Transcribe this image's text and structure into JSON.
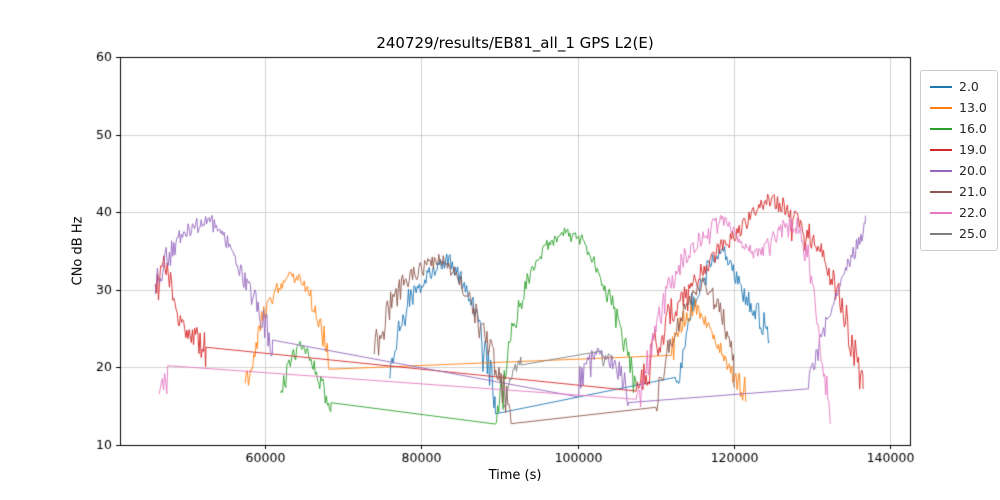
{
  "chart_data": {
    "type": "line",
    "title": "240729/results/EB81_all_1 GPS L2(E)",
    "xlabel": "Time (s)",
    "ylabel": "CNo dB Hz",
    "xlim": [
      41500,
      142500
    ],
    "ylim": [
      10,
      60
    ],
    "grid": true,
    "xtick_values": [
      60000,
      80000,
      100000,
      120000,
      140000
    ],
    "xtick_labels": [
      "60000",
      "80000",
      "100000",
      "120000",
      "140000"
    ],
    "ytick_values": [
      10,
      20,
      30,
      40,
      50,
      60
    ],
    "ytick_labels": [
      "10",
      "20",
      "30",
      "40",
      "50",
      "60"
    ],
    "legend": {
      "position": "right-outside",
      "entries": [
        {
          "label": "2.0",
          "color": "#1f77b4"
        },
        {
          "label": "13.0",
          "color": "#ff7f0e"
        },
        {
          "label": "16.0",
          "color": "#2ca02c"
        },
        {
          "label": "19.0",
          "color": "#d62728"
        },
        {
          "label": "20.0",
          "color": "#9467bd"
        },
        {
          "label": "21.0",
          "color": "#8c564b"
        },
        {
          "label": "22.0",
          "color": "#e377c2"
        },
        {
          "label": "25.0",
          "color": "#7f7f7f"
        }
      ]
    },
    "series": [
      {
        "name": "2.0",
        "color": "#1f77b4",
        "noise": 1.6,
        "segments": [
          [
            [
              76000,
              20
            ],
            [
              78500,
              29
            ],
            [
              81000,
              32
            ],
            [
              83500,
              34
            ],
            [
              86000,
              30
            ],
            [
              88000,
              23
            ],
            [
              89500,
              16
            ]
          ],
          [
            [
              112500,
              17
            ],
            [
              114500,
              28
            ],
            [
              116500,
              33
            ],
            [
              118500,
              35.5
            ],
            [
              121000,
              30
            ],
            [
              123000,
              27
            ],
            [
              124500,
              25
            ]
          ]
        ]
      },
      {
        "name": "13.0",
        "color": "#ff7f0e",
        "noise": 1.4,
        "segments": [
          [
            [
              57500,
              17
            ],
            [
              59500,
              26
            ],
            [
              61500,
              30
            ],
            [
              63500,
              32
            ],
            [
              65500,
              30
            ],
            [
              67000,
              26
            ],
            [
              68200,
              21
            ]
          ],
          [
            [
              112000,
              22
            ],
            [
              113500,
              26
            ],
            [
              115000,
              28
            ],
            [
              117000,
              25
            ],
            [
              119000,
              21
            ],
            [
              120500,
              18
            ],
            [
              121500,
              16.5
            ]
          ]
        ]
      },
      {
        "name": "16.0",
        "color": "#2ca02c",
        "noise": 1.3,
        "segments": [
          [
            [
              62000,
              17
            ],
            [
              63500,
              21
            ],
            [
              64800,
              23
            ],
            [
              66000,
              21
            ],
            [
              67200,
              18
            ],
            [
              68500,
              14.5
            ]
          ],
          [
            [
              89500,
              13.5
            ],
            [
              91500,
              24
            ],
            [
              93500,
              31
            ],
            [
              96000,
              35.5
            ],
            [
              98500,
              37.5
            ],
            [
              100500,
              36.5
            ],
            [
              102500,
              33
            ],
            [
              104500,
              28
            ],
            [
              106000,
              23
            ],
            [
              107500,
              17
            ]
          ]
        ]
      },
      {
        "name": "19.0",
        "color": "#d62728",
        "noise": 1.8,
        "segments": [
          [
            [
              46000,
              29
            ],
            [
              47000,
              33
            ],
            [
              48000,
              31
            ],
            [
              49000,
              26
            ],
            [
              50500,
              24
            ],
            [
              52500,
              22.5
            ]
          ],
          [
            [
              107500,
              15
            ],
            [
              109500,
              22
            ],
            [
              112000,
              27
            ],
            [
              115000,
              31
            ],
            [
              118000,
              35
            ],
            [
              121000,
              38
            ],
            [
              124000,
              41.5
            ],
            [
              126000,
              41
            ],
            [
              128000,
              39
            ],
            [
              130500,
              36
            ],
            [
              132500,
              32
            ],
            [
              134000,
              27
            ],
            [
              135500,
              22
            ],
            [
              136500,
              18
            ]
          ]
        ]
      },
      {
        "name": "20.0",
        "color": "#9467bd",
        "noise": 1.4,
        "segments": [
          [
            [
              46000,
              30
            ],
            [
              47500,
              34
            ],
            [
              49500,
              37
            ],
            [
              51500,
              38.5
            ],
            [
              53500,
              39
            ],
            [
              55500,
              36
            ],
            [
              57500,
              31
            ],
            [
              59500,
              27
            ],
            [
              61000,
              23
            ]
          ],
          [
            [
              100000,
              18
            ],
            [
              101500,
              21
            ],
            [
              103000,
              22
            ],
            [
              105000,
              20
            ],
            [
              106500,
              17
            ]
          ],
          [
            [
              129500,
              17
            ],
            [
              131000,
              23
            ],
            [
              132500,
              28
            ],
            [
              134000,
              32
            ],
            [
              135500,
              35.5
            ],
            [
              136800,
              38
            ]
          ]
        ]
      },
      {
        "name": "21.0",
        "color": "#8c564b",
        "noise": 1.6,
        "segments": [
          [
            [
              74000,
              22
            ],
            [
              76000,
              28
            ],
            [
              78000,
              31
            ],
            [
              80500,
              33
            ],
            [
              83000,
              34
            ],
            [
              85000,
              31
            ],
            [
              87000,
              27
            ],
            [
              89000,
              22
            ],
            [
              90500,
              17
            ],
            [
              91500,
              14.5
            ]
          ],
          [
            [
              110000,
              15
            ],
            [
              111500,
              22
            ],
            [
              113000,
              26
            ],
            [
              114500,
              29
            ],
            [
              116000,
              31
            ],
            [
              117500,
              29
            ],
            [
              119000,
              25
            ],
            [
              120000,
              22.5
            ]
          ]
        ]
      },
      {
        "name": "22.0",
        "color": "#e377c2",
        "noise": 1.5,
        "segments": [
          [
            [
              46500,
              16
            ],
            [
              47000,
              19
            ],
            [
              47600,
              18
            ]
          ],
          [
            [
              107500,
              14
            ],
            [
              109500,
              23
            ],
            [
              111500,
              30
            ],
            [
              113500,
              34
            ],
            [
              115500,
              36.5
            ],
            [
              117500,
              38.5
            ],
            [
              119000,
              39
            ],
            [
              121000,
              36
            ],
            [
              123000,
              34.5
            ],
            [
              125000,
              36.5
            ],
            [
              126500,
              38
            ],
            [
              128000,
              38
            ],
            [
              129500,
              34
            ],
            [
              130500,
              28
            ],
            [
              131500,
              20
            ],
            [
              132300,
              14
            ]
          ]
        ]
      },
      {
        "name": "25.0",
        "color": "#7f7f7f",
        "noise": 0.8,
        "segments": [
          [
            [
              90500,
              14
            ],
            [
              91200,
              18
            ],
            [
              92000,
              20
            ],
            [
              92800,
              20.5
            ]
          ],
          [
            [
              103000,
              21
            ],
            [
              104500,
              21.5
            ]
          ]
        ]
      }
    ]
  }
}
